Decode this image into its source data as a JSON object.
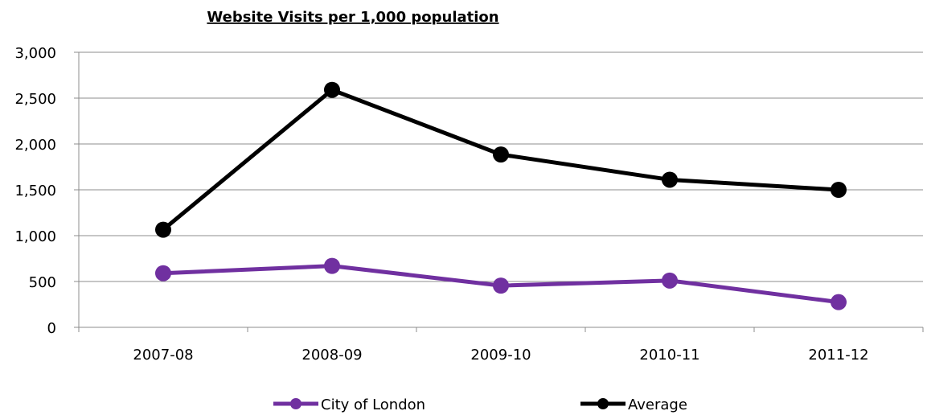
{
  "chart_data": {
    "type": "line",
    "title": "Website Visits per 1,000 population",
    "xlabel": "",
    "ylabel": "",
    "categories": [
      "2007-08",
      "2008-09",
      "2009-10",
      "2010-11",
      "2011-12"
    ],
    "ylim": [
      0,
      3000
    ],
    "yticks": [
      0,
      500,
      1000,
      1500,
      2000,
      2500,
      3000
    ],
    "ytick_labels": [
      "0",
      "500",
      "1,000",
      "1,500",
      "2,000",
      "2,500",
      "3,000"
    ],
    "grid": true,
    "legend_position": "bottom",
    "series": [
      {
        "name": "City of London",
        "color": "#7030A0",
        "values": [
          590,
          670,
          455,
          510,
          275
        ]
      },
      {
        "name": "Average",
        "color": "#000000",
        "values": [
          1065,
          2590,
          1885,
          1610,
          1500
        ]
      }
    ]
  }
}
